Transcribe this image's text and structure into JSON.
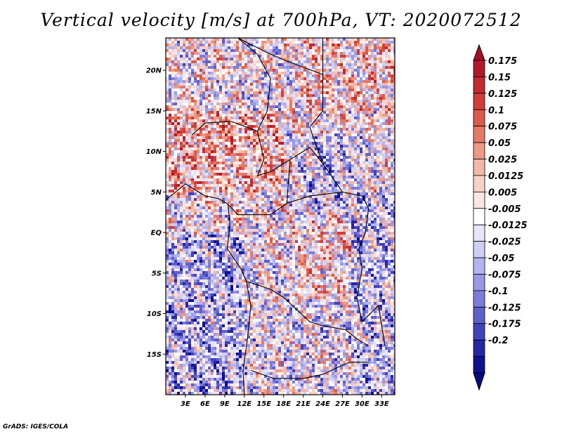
{
  "title": "Vertical velocity [m/s] at 700hPa, VT: 2020072512",
  "footer": "GrADS: IGES/COLA",
  "chart_data": {
    "type": "heatmap",
    "title": "Vertical velocity [m/s] at 700hPa, VT: 2020072512",
    "variable": "Vertical velocity",
    "units": "m/s",
    "level": "700hPa",
    "valid_time": "2020072512",
    "x_range": [
      0,
      35
    ],
    "y_range": [
      -20,
      24
    ],
    "x_ticks": [
      {
        "v": 3,
        "label": "3E"
      },
      {
        "v": 6,
        "label": "6E"
      },
      {
        "v": 9,
        "label": "9E"
      },
      {
        "v": 12,
        "label": "12E"
      },
      {
        "v": 15,
        "label": "15E"
      },
      {
        "v": 18,
        "label": "18E"
      },
      {
        "v": 21,
        "label": "21E"
      },
      {
        "v": 24,
        "label": "24E"
      },
      {
        "v": 27,
        "label": "27E"
      },
      {
        "v": 30,
        "label": "30E"
      },
      {
        "v": 33,
        "label": "33E"
      }
    ],
    "y_ticks": [
      {
        "v": 20,
        "label": "20N"
      },
      {
        "v": 15,
        "label": "15N"
      },
      {
        "v": 10,
        "label": "10N"
      },
      {
        "v": 5,
        "label": "5N"
      },
      {
        "v": 0,
        "label": "EQ"
      },
      {
        "v": -5,
        "label": "5S"
      },
      {
        "v": -10,
        "label": "10S"
      },
      {
        "v": -15,
        "label": "15S"
      }
    ],
    "colorbar": {
      "labels": [
        "0.175",
        "0.15",
        "0.125",
        "0.1",
        "0.075",
        "0.05",
        "0.025",
        "0.0125",
        "0.005",
        "-0.005",
        "-0.0125",
        "-0.025",
        "-0.05",
        "-0.075",
        "-0.1",
        "-0.125",
        "-0.175",
        "-0.2"
      ],
      "colors": [
        "#b2182b",
        "#c32a2f",
        "#d13d3a",
        "#dc5a4c",
        "#e47a66",
        "#ec9a86",
        "#f3b8a7",
        "#f8d2c6",
        "#fbe7e1",
        "#ffffff",
        "#e6e6fb",
        "#cfcff6",
        "#b3b3ef",
        "#9898e6",
        "#7c7cdb",
        "#5f5fcd",
        "#4242bb",
        "#2525a5",
        "#101090"
      ],
      "top_color": "#a50f26",
      "bottom_color": "#0a0a80"
    }
  }
}
